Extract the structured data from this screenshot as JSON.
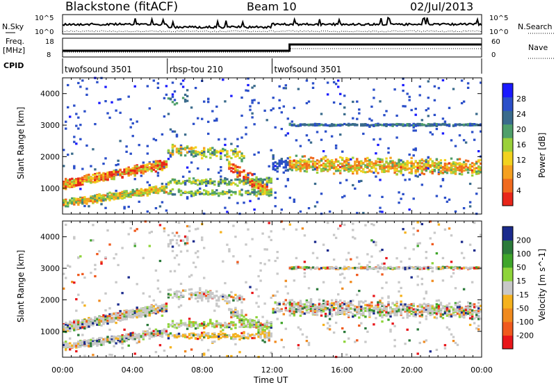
{
  "header": {
    "station": "Blackstone (fitACF)",
    "beam": "Beam 10",
    "date": "02/Jul/2013"
  },
  "top_panels": {
    "nsky_label": "N.Sky",
    "nsearch_label": "N.Search",
    "noise_ticks_left": [
      "10^5",
      "10^0"
    ],
    "noise_ticks_right": [
      "10^5",
      "10^0"
    ],
    "freq_label_1": "Freq.",
    "freq_label_2": "[MHz]",
    "freq_ticks": [
      "18",
      "8"
    ],
    "nave_label": "Nave",
    "nave_ticks": [
      "60",
      "0"
    ],
    "cpid_label": "CPID"
  },
  "cpid_segments": [
    {
      "label": "twofsound 3501",
      "start_hour": 0,
      "end_hour": 6
    },
    {
      "label": "rbsp-tou 210",
      "start_hour": 6,
      "end_hour": 12
    },
    {
      "label": "twofsound 3501",
      "start_hour": 12,
      "end_hour": 24
    }
  ],
  "chart_data": {
    "type": "heatmap",
    "x_axis": {
      "label": "Time UT",
      "range_hours": [
        0,
        24
      ],
      "ticks": [
        "00:00",
        "04:00",
        "08:00",
        "12:00",
        "16:00",
        "20:00",
        "00:00"
      ]
    },
    "y_axis": {
      "label": "Slant Range [km]",
      "range_km": [
        180,
        4500
      ],
      "ticks": [
        "1000",
        "2000",
        "3000",
        "4000"
      ]
    },
    "power_panel": {
      "colorbar_label": "Power [dB]",
      "colorbar_ticks": [
        "4",
        "8",
        "12",
        "16",
        "20",
        "24",
        "28"
      ],
      "colors": [
        "#1a1aff",
        "#2b4fc9",
        "#3a6b8c",
        "#4f9f6a",
        "#9ad03a",
        "#f2d21f",
        "#f5a020",
        "#f06a1e",
        "#e8261a"
      ]
    },
    "velocity_panel": {
      "colorbar_label": "Velocity [m s^-1]",
      "colorbar_ticks": [
        "200",
        "100",
        "50",
        "15",
        "-15",
        "-50",
        "-100",
        "-200"
      ],
      "colors": [
        "#1a2a8c",
        "#2b7a3a",
        "#3fa52a",
        "#8ed43a",
        "#c8c8c8",
        "#f5b21e",
        "#f08a1e",
        "#f05a1e",
        "#e8161a"
      ]
    }
  }
}
